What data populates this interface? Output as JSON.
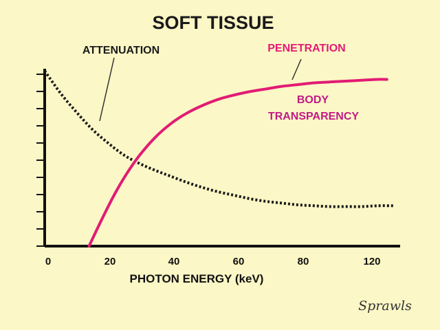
{
  "chart_data": {
    "type": "line",
    "title": "SOFT TISSUE",
    "xlabel": "PHOTON ENERGY (keV)",
    "ylabel": "",
    "x_tick_labels": [
      "0",
      "20",
      "40",
      "60",
      "80",
      "120"
    ],
    "xlim": [
      0,
      110
    ],
    "ylim": [
      0,
      10
    ],
    "grid": false,
    "y_ticks_unlabeled": 11,
    "series": [
      {
        "name": "ATTENUATION",
        "style": "dotted",
        "color": "#1a1a1a",
        "x": [
          0,
          5,
          10,
          15,
          20,
          25,
          30,
          35,
          40,
          45,
          50,
          55,
          60,
          65,
          70,
          75,
          80,
          85,
          90,
          95,
          100,
          105,
          110
        ],
        "y": [
          10.2,
          8.9,
          7.8,
          6.8,
          6.0,
          5.3,
          4.8,
          4.4,
          4.05,
          3.7,
          3.4,
          3.15,
          2.95,
          2.75,
          2.6,
          2.5,
          2.4,
          2.35,
          2.3,
          2.3,
          2.3,
          2.35,
          2.35
        ]
      },
      {
        "name": "PENETRATION",
        "style": "solid",
        "color": "#e21b74",
        "x": [
          14,
          18,
          22,
          26,
          30,
          35,
          40,
          45,
          50,
          55,
          60,
          65,
          70,
          75,
          80,
          85,
          90,
          95,
          100,
          105,
          108
        ],
        "y": [
          0,
          1.55,
          3.0,
          4.25,
          5.3,
          6.35,
          7.15,
          7.75,
          8.2,
          8.55,
          8.8,
          9.0,
          9.15,
          9.3,
          9.4,
          9.5,
          9.55,
          9.6,
          9.65,
          9.7,
          9.7
        ]
      }
    ],
    "annotations": [
      {
        "text": "ATTENUATION",
        "color": "#1a1a1a"
      },
      {
        "text": "PENETRATION",
        "color": "#e21b74"
      },
      {
        "text": [
          "BODY",
          "TRANSPARENCY"
        ],
        "color": "#c21a86"
      }
    ],
    "colors": {
      "background": "#fbf7c6",
      "axis": "#111111"
    }
  },
  "signature": "Sprawls"
}
